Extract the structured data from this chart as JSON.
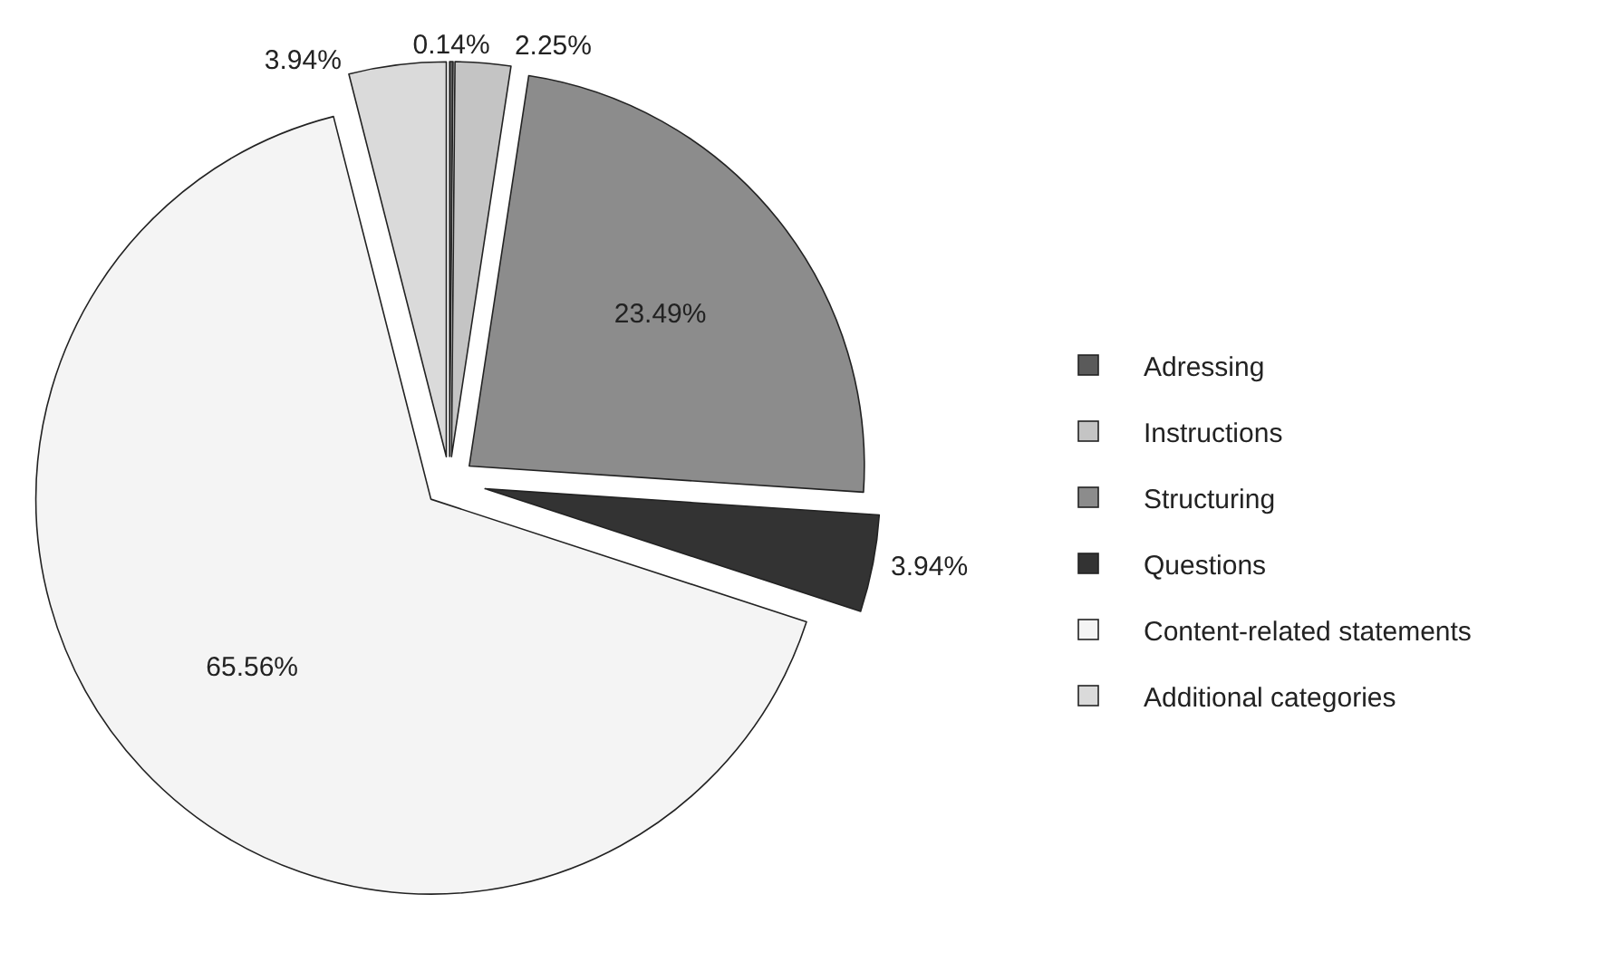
{
  "chart_data": {
    "type": "pie",
    "categories": [
      "Adressing",
      "Instructions",
      "Structuring",
      "Questions",
      "Content-related statements",
      "Additional categories"
    ],
    "values": [
      0.14,
      2.25,
      23.49,
      3.94,
      65.56,
      3.94
    ],
    "colors": [
      "#5a5a5a",
      "#c4c4c4",
      "#8c8c8c",
      "#333333",
      "#f4f4f4",
      "#dadada"
    ],
    "value_labels": [
      "0.14%",
      "2.25%",
      "23.49%",
      "3.94%",
      "65.56%",
      "3.94%"
    ],
    "legend": "right"
  }
}
